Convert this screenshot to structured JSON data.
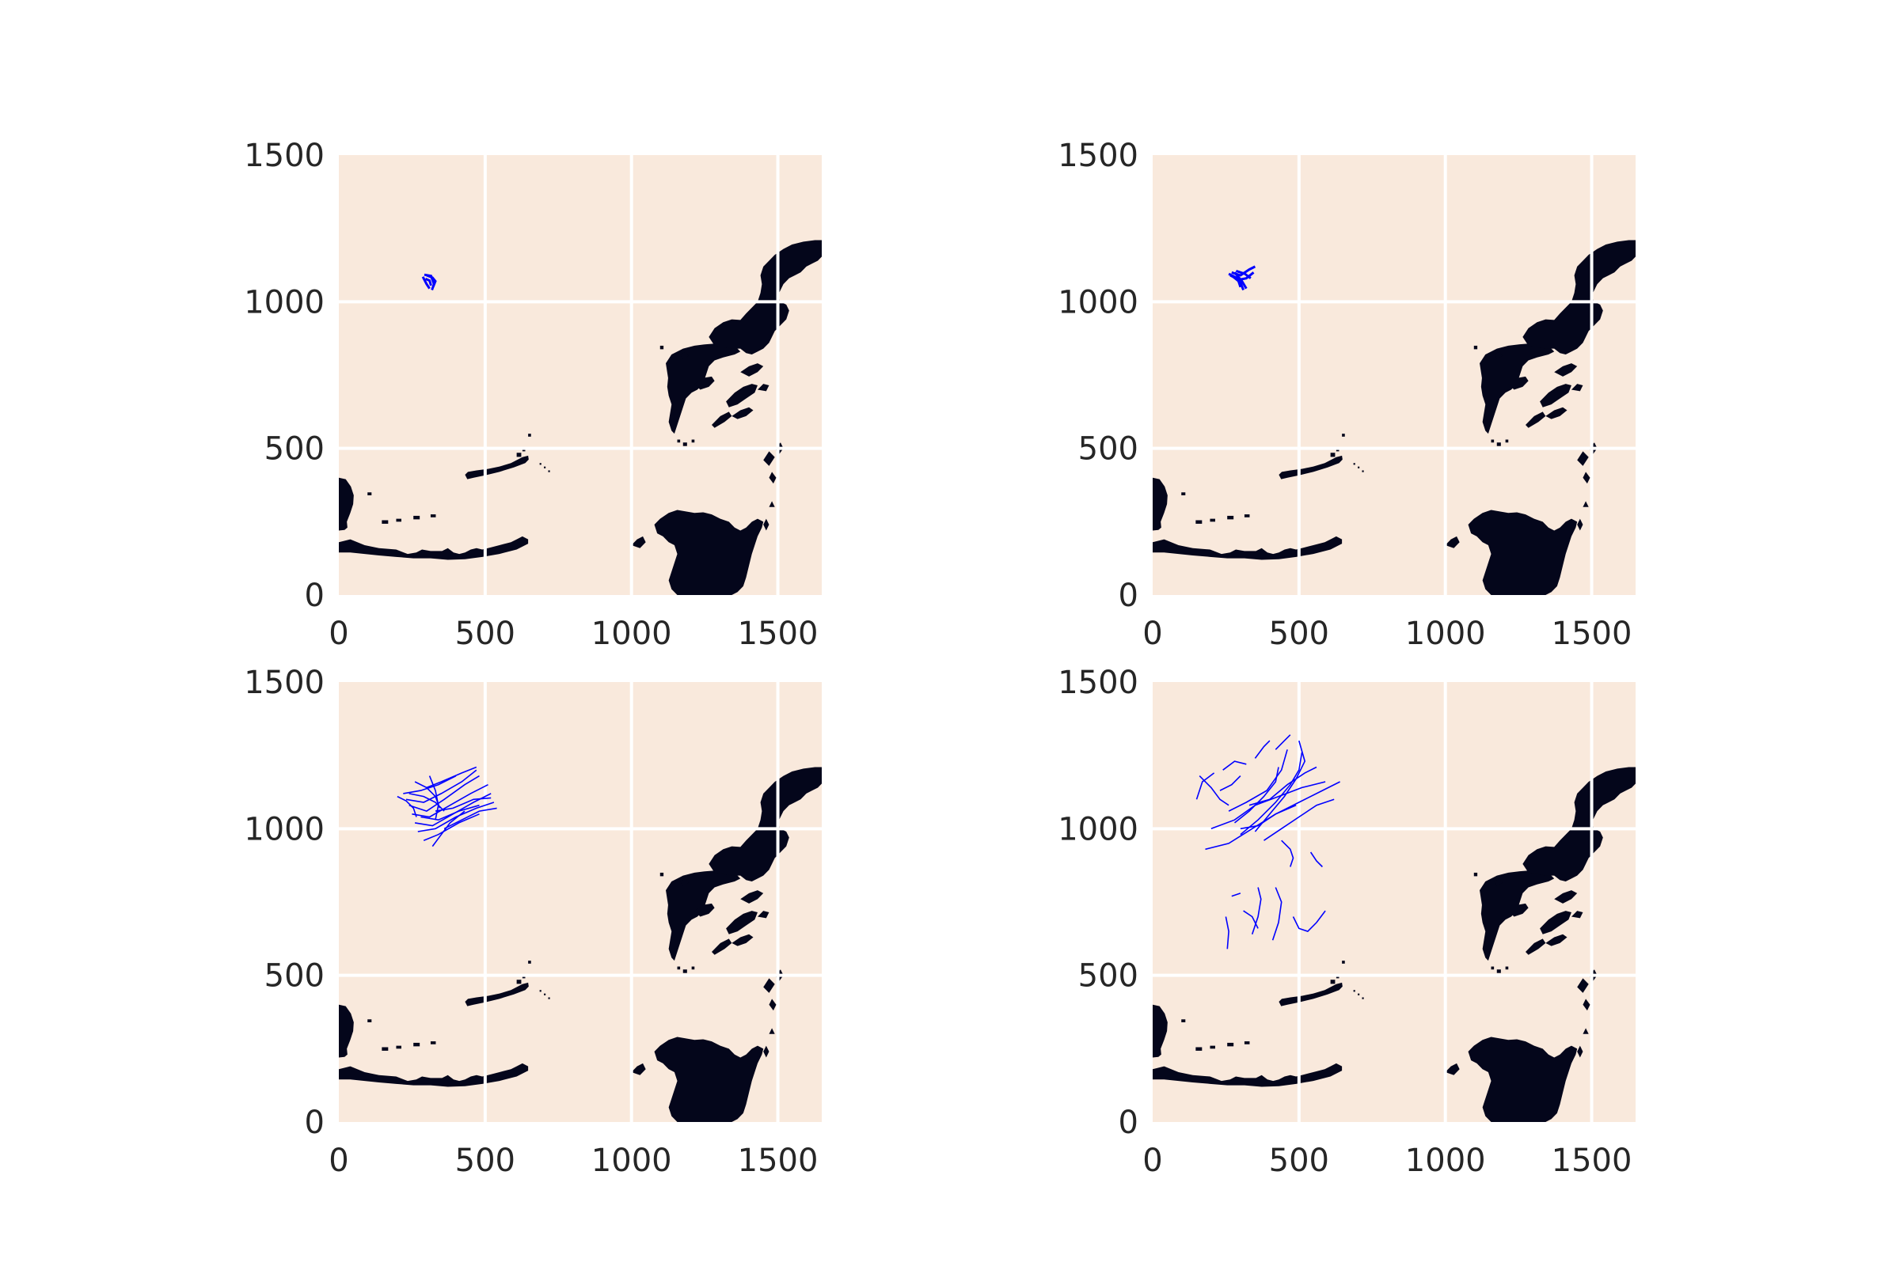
{
  "chart_data": [
    {
      "type": "scatter",
      "panel": "top-left",
      "xlim": [
        0,
        1650
      ],
      "ylim": [
        0,
        1500
      ],
      "xticks": [
        "0",
        "500",
        "1000",
        "1500"
      ],
      "yticks": [
        "0",
        "500",
        "1000",
        "1500"
      ],
      "grid": true,
      "colors": {
        "background": "#f9e9dc",
        "land": "#04061b",
        "tracks": "#0000ff",
        "grid": "#ffffff"
      },
      "tracks": [
        [
          [
            287,
            1085
          ],
          [
            300,
            1060
          ],
          [
            310,
            1045
          ]
        ],
        [
          [
            292,
            1092
          ],
          [
            315,
            1088
          ],
          [
            325,
            1060
          ],
          [
            318,
            1040
          ]
        ],
        [
          [
            300,
            1090
          ],
          [
            320,
            1082
          ],
          [
            330,
            1070
          ],
          [
            322,
            1050
          ]
        ],
        [
          [
            296,
            1078
          ],
          [
            310,
            1072
          ],
          [
            315,
            1055
          ]
        ]
      ]
    },
    {
      "type": "scatter",
      "panel": "top-right",
      "xlim": [
        0,
        1650
      ],
      "ylim": [
        0,
        1500
      ],
      "xticks": [
        "0",
        "500",
        "1000",
        "1500"
      ],
      "yticks": [
        "0",
        "500",
        "1000",
        "1500"
      ],
      "grid": true,
      "colors": {
        "background": "#f9e9dc",
        "land": "#04061b",
        "tracks": "#0000ff",
        "grid": "#ffffff"
      },
      "tracks": [
        [
          [
            260,
            1095
          ],
          [
            290,
            1080
          ],
          [
            300,
            1050
          ]
        ],
        [
          [
            270,
            1100
          ],
          [
            300,
            1090
          ],
          [
            330,
            1110
          ],
          [
            350,
            1120
          ]
        ],
        [
          [
            265,
            1090
          ],
          [
            295,
            1075
          ],
          [
            320,
            1080
          ],
          [
            345,
            1100
          ]
        ],
        [
          [
            275,
            1085
          ],
          [
            300,
            1065
          ],
          [
            310,
            1040
          ]
        ],
        [
          [
            280,
            1100
          ],
          [
            305,
            1070
          ],
          [
            320,
            1045
          ]
        ],
        [
          [
            285,
            1105
          ],
          [
            315,
            1095
          ],
          [
            335,
            1080
          ]
        ]
      ]
    },
    {
      "type": "scatter",
      "panel": "bottom-left",
      "xlim": [
        0,
        1650
      ],
      "ylim": [
        0,
        1500
      ],
      "xticks": [
        "0",
        "500",
        "1000",
        "1500"
      ],
      "yticks": [
        "0",
        "500",
        "1000",
        "1500"
      ],
      "grid": true,
      "colors": {
        "background": "#f9e9dc",
        "land": "#04061b",
        "tracks": "#0000ff",
        "grid": "#ffffff"
      },
      "tracks": [
        [
          [
            240,
            1080
          ],
          [
            300,
            1060
          ],
          [
            360,
            1100
          ],
          [
            430,
            1150
          ],
          [
            480,
            1180
          ]
        ],
        [
          [
            250,
            1050
          ],
          [
            310,
            1040
          ],
          [
            380,
            1080
          ],
          [
            450,
            1120
          ],
          [
            510,
            1150
          ]
        ],
        [
          [
            230,
            1100
          ],
          [
            290,
            1090
          ],
          [
            350,
            1120
          ],
          [
            420,
            1160
          ],
          [
            470,
            1200
          ]
        ],
        [
          [
            260,
            1020
          ],
          [
            320,
            1010
          ],
          [
            390,
            1050
          ],
          [
            460,
            1090
          ],
          [
            520,
            1120
          ]
        ],
        [
          [
            270,
            990
          ],
          [
            330,
            1000
          ],
          [
            400,
            1040
          ],
          [
            470,
            1070
          ],
          [
            530,
            1090
          ]
        ],
        [
          [
            290,
            960
          ],
          [
            340,
            980
          ],
          [
            410,
            1020
          ],
          [
            480,
            1050
          ]
        ],
        [
          [
            220,
            1120
          ],
          [
            280,
            1130
          ],
          [
            340,
            1150
          ],
          [
            400,
            1180
          ]
        ],
        [
          [
            300,
            1140
          ],
          [
            350,
            1160
          ],
          [
            420,
            1190
          ],
          [
            470,
            1210
          ]
        ],
        [
          [
            260,
            1160
          ],
          [
            300,
            1140
          ],
          [
            330,
            1110
          ],
          [
            345,
            1070
          ]
        ],
        [
          [
            310,
            1180
          ],
          [
            330,
            1130
          ],
          [
            340,
            1080
          ],
          [
            330,
            1030
          ]
        ],
        [
          [
            200,
            1110
          ],
          [
            230,
            1095
          ],
          [
            255,
            1070
          ],
          [
            265,
            1040
          ]
        ],
        [
          [
            330,
            1060
          ],
          [
            390,
            1070
          ],
          [
            460,
            1100
          ],
          [
            520,
            1105
          ]
        ],
        [
          [
            280,
            1040
          ],
          [
            340,
            1030
          ],
          [
            410,
            1060
          ],
          [
            480,
            1080
          ]
        ],
        [
          [
            240,
            1120
          ],
          [
            290,
            1110
          ],
          [
            330,
            1090
          ],
          [
            360,
            1060
          ]
        ],
        [
          [
            360,
            1000
          ],
          [
            420,
            1030
          ],
          [
            480,
            1060
          ],
          [
            540,
            1070
          ]
        ],
        [
          [
            320,
            940
          ],
          [
            350,
            980
          ],
          [
            380,
            1020
          ],
          [
            430,
            1060
          ]
        ]
      ]
    },
    {
      "type": "scatter",
      "panel": "bottom-right",
      "xlim": [
        0,
        1650
      ],
      "ylim": [
        0,
        1500
      ],
      "xticks": [
        "0",
        "500",
        "1000",
        "1500"
      ],
      "yticks": [
        "0",
        "500",
        "1000",
        "1500"
      ],
      "grid": true,
      "colors": {
        "background": "#f9e9dc",
        "land": "#04061b",
        "tracks": "#0000ff",
        "grid": "#ffffff"
      },
      "tracks": [
        [
          [
            180,
            930
          ],
          [
            260,
            950
          ],
          [
            340,
            1000
          ],
          [
            420,
            1050
          ],
          [
            500,
            1090
          ],
          [
            580,
            1130
          ],
          [
            640,
            1160
          ]
        ],
        [
          [
            200,
            1000
          ],
          [
            280,
            1030
          ],
          [
            350,
            1080
          ],
          [
            430,
            1110
          ],
          [
            510,
            1140
          ],
          [
            590,
            1160
          ]
        ],
        [
          [
            160,
            1180
          ],
          [
            200,
            1140
          ],
          [
            230,
            1100
          ],
          [
            260,
            1080
          ]
        ],
        [
          [
            150,
            1100
          ],
          [
            170,
            1160
          ],
          [
            210,
            1190
          ]
        ],
        [
          [
            240,
            1200
          ],
          [
            280,
            1230
          ],
          [
            320,
            1220
          ]
        ],
        [
          [
            300,
            980
          ],
          [
            360,
            1030
          ],
          [
            420,
            1090
          ],
          [
            470,
            1150
          ],
          [
            500,
            1200
          ],
          [
            510,
            1260
          ]
        ],
        [
          [
            350,
            990
          ],
          [
            400,
            1050
          ],
          [
            450,
            1110
          ],
          [
            490,
            1170
          ],
          [
            520,
            1230
          ],
          [
            500,
            1300
          ]
        ],
        [
          [
            330,
            1080
          ],
          [
            400,
            1100
          ],
          [
            460,
            1150
          ],
          [
            520,
            1190
          ],
          [
            560,
            1210
          ]
        ],
        [
          [
            380,
            960
          ],
          [
            440,
            1000
          ],
          [
            500,
            1040
          ],
          [
            560,
            1080
          ],
          [
            620,
            1100
          ]
        ],
        [
          [
            260,
            1060
          ],
          [
            320,
            1090
          ],
          [
            390,
            1130
          ],
          [
            440,
            1200
          ],
          [
            460,
            1270
          ]
        ],
        [
          [
            420,
            1270
          ],
          [
            450,
            1300
          ],
          [
            470,
            1320
          ]
        ],
        [
          [
            350,
            1240
          ],
          [
            380,
            1280
          ],
          [
            400,
            1300
          ]
        ],
        [
          [
            230,
            1130
          ],
          [
            270,
            1150
          ],
          [
            300,
            1180
          ]
        ],
        [
          [
            360,
            800
          ],
          [
            370,
            760
          ],
          [
            360,
            700
          ],
          [
            340,
            640
          ]
        ],
        [
          [
            420,
            800
          ],
          [
            440,
            750
          ],
          [
            430,
            680
          ],
          [
            410,
            620
          ]
        ],
        [
          [
            480,
            700
          ],
          [
            500,
            660
          ],
          [
            530,
            650
          ],
          [
            560,
            680
          ],
          [
            590,
            720
          ]
        ],
        [
          [
            270,
            770
          ],
          [
            300,
            780
          ]
        ],
        [
          [
            250,
            700
          ],
          [
            260,
            650
          ],
          [
            255,
            590
          ]
        ],
        [
          [
            310,
            720
          ],
          [
            340,
            700
          ],
          [
            360,
            660
          ]
        ],
        [
          [
            300,
            1000
          ],
          [
            360,
            1010
          ],
          [
            420,
            1050
          ],
          [
            490,
            1080
          ]
        ],
        [
          [
            440,
            960
          ],
          [
            470,
            930
          ],
          [
            480,
            900
          ],
          [
            470,
            870
          ]
        ],
        [
          [
            540,
            920
          ],
          [
            560,
            890
          ],
          [
            580,
            870
          ]
        ],
        [
          [
            280,
            1020
          ],
          [
            330,
            1060
          ],
          [
            380,
            1110
          ],
          [
            420,
            1160
          ],
          [
            430,
            1210
          ]
        ]
      ]
    }
  ]
}
